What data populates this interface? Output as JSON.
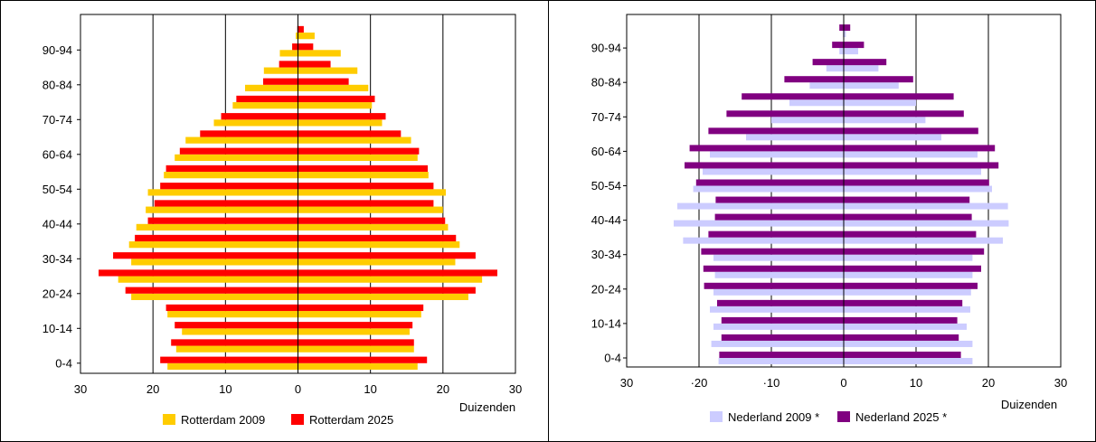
{
  "chart_data": [
    {
      "type": "bar",
      "orientation": "horizontal-pyramid",
      "x_unit_label": "Duizenden",
      "x_ticks": [
        "30",
        "20",
        "10",
        "0",
        "10",
        "20",
        "30"
      ],
      "xlim": [
        -30,
        30
      ],
      "y_labels": [
        "0-4",
        "10-14",
        "20-24",
        "30-34",
        "40-44",
        "50-54",
        "60-64",
        "70-74",
        "80-84",
        "90-94"
      ],
      "age_groups": [
        "0-4",
        "5-9",
        "10-14",
        "15-19",
        "20-24",
        "25-29",
        "30-34",
        "35-39",
        "40-44",
        "45-49",
        "50-54",
        "55-59",
        "60-64",
        "65-69",
        "70-74",
        "75-79",
        "80-84",
        "85-89",
        "90-94",
        "95+"
      ],
      "grid": true,
      "legend_position": "bottom",
      "series": [
        {
          "name": "Rotterdam 2009",
          "color": "#ffcc00",
          "left": [
            18.0,
            16.8,
            16.0,
            18.0,
            23.0,
            24.8,
            23.0,
            23.3,
            22.3,
            21.0,
            20.7,
            18.5,
            17.0,
            15.5,
            11.6,
            9.0,
            7.3,
            4.7,
            2.5,
            0.3
          ],
          "right": [
            16.5,
            16.0,
            15.4,
            17.0,
            23.5,
            25.4,
            21.7,
            22.3,
            20.7,
            20.0,
            20.4,
            18.0,
            16.5,
            15.6,
            11.6,
            10.2,
            9.7,
            8.2,
            5.9,
            2.3
          ]
        },
        {
          "name": "Rotterdam 2025",
          "color": "#ff0000",
          "left": [
            19.0,
            17.5,
            17.0,
            18.2,
            23.8,
            27.5,
            25.5,
            22.5,
            20.7,
            19.8,
            19.0,
            18.2,
            16.3,
            13.5,
            10.6,
            8.5,
            4.8,
            2.6,
            0.8,
            0.1
          ],
          "right": [
            17.8,
            16.0,
            15.8,
            17.3,
            24.5,
            27.5,
            24.5,
            21.8,
            20.3,
            18.7,
            18.7,
            17.9,
            16.7,
            14.2,
            12.1,
            10.6,
            7.0,
            4.5,
            2.1,
            0.8
          ]
        }
      ]
    },
    {
      "type": "bar",
      "orientation": "horizontal-pyramid",
      "x_unit_label": "Duizenden",
      "x_ticks": [
        "30",
        "·20",
        "·10",
        "0",
        "10",
        "20",
        "30"
      ],
      "xlim": [
        -30,
        30
      ],
      "y_labels": [
        "0-4",
        "10-14",
        "20-24",
        "30-34",
        "40-44",
        "50-54",
        "60-64",
        "70-74",
        "80-84",
        "90-94"
      ],
      "age_groups": [
        "0-4",
        "5-9",
        "10-14",
        "15-19",
        "20-24",
        "25-29",
        "30-34",
        "35-39",
        "40-44",
        "45-49",
        "50-54",
        "55-59",
        "60-64",
        "65-69",
        "70-74",
        "75-79",
        "80-84",
        "85-89",
        "90-94",
        "95+"
      ],
      "grid": true,
      "legend_position": "bottom",
      "series": [
        {
          "name": "Nederland 2009 *",
          "color": "#ccccff",
          "left": [
            17.3,
            18.3,
            18.0,
            18.5,
            18.0,
            17.8,
            18.0,
            22.2,
            23.5,
            23.0,
            20.8,
            19.5,
            18.5,
            13.5,
            10.0,
            7.5,
            4.7,
            2.4,
            0.6,
            0.1
          ],
          "right": [
            17.8,
            17.8,
            17.0,
            17.5,
            17.6,
            17.8,
            17.8,
            22.0,
            22.8,
            22.7,
            20.5,
            19.0,
            18.5,
            13.5,
            11.3,
            10.0,
            7.6,
            4.8,
            2.0,
            0.3
          ]
        },
        {
          "name": "Nederland 2025 *",
          "color": "#800080",
          "left": [
            17.2,
            16.9,
            16.9,
            17.5,
            19.3,
            19.4,
            19.7,
            18.7,
            17.8,
            17.7,
            20.4,
            22.0,
            21.3,
            18.7,
            16.2,
            14.1,
            8.2,
            4.3,
            1.6,
            0.6
          ],
          "right": [
            16.2,
            15.9,
            15.7,
            16.4,
            18.5,
            19.0,
            19.4,
            18.3,
            17.7,
            17.4,
            20.1,
            21.4,
            20.9,
            18.6,
            16.6,
            15.2,
            9.6,
            5.9,
            2.8,
            0.9
          ]
        }
      ]
    }
  ]
}
